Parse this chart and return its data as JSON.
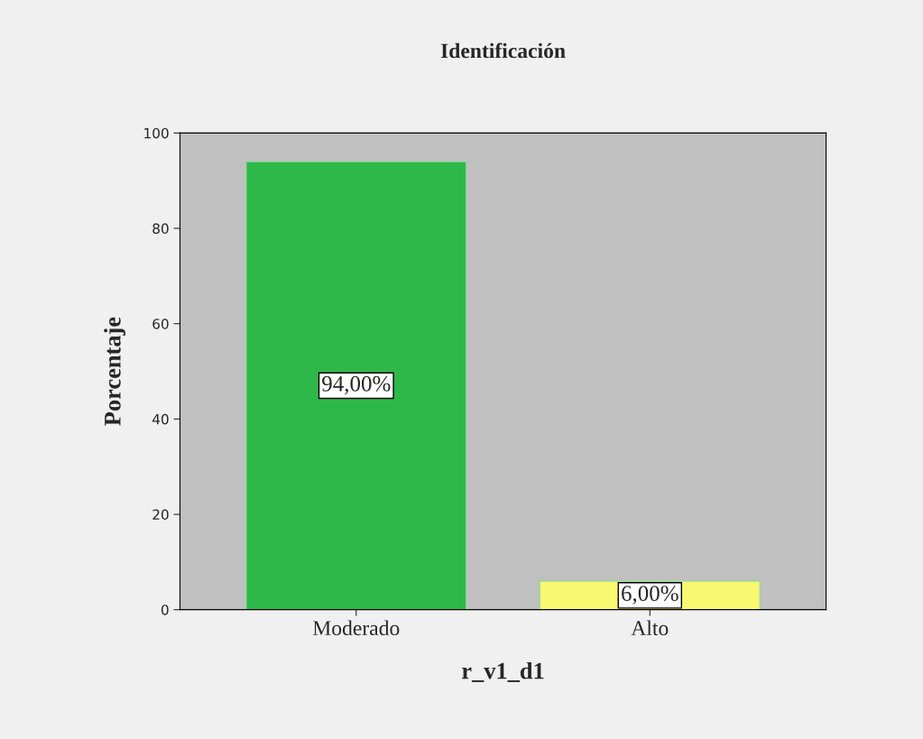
{
  "chart_data": {
    "type": "bar",
    "title": "Identificación",
    "xlabel": "r_v1_d1",
    "ylabel": "Porcentaje",
    "categories": [
      "Moderado",
      "Alto"
    ],
    "values": [
      94,
      6
    ],
    "colors": [
      "#2fb84a",
      "#f9f871"
    ],
    "value_labels": [
      "94,00%",
      "6,00%"
    ],
    "ylim": [
      0,
      100
    ],
    "yticks": [
      0,
      20,
      40,
      60,
      80,
      100
    ]
  }
}
